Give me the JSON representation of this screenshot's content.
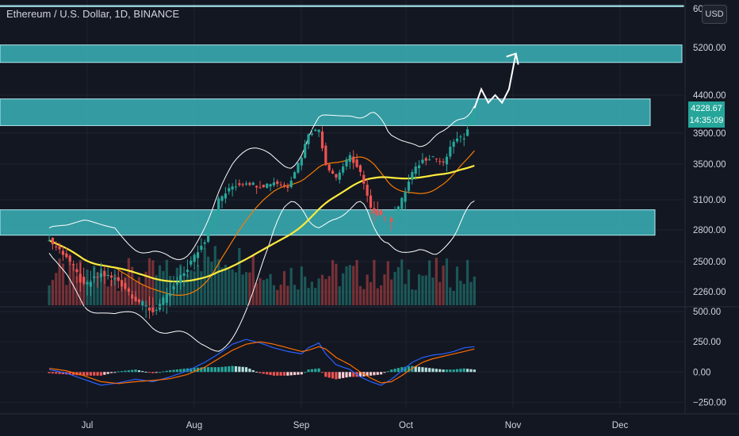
{
  "header": {
    "title": "Ethereum / U.S. Dollar, 1D, BINANCE",
    "currency": "USD"
  },
  "price_badge": {
    "price": "4228.67",
    "countdown": "14:35:09"
  },
  "colors": {
    "zone": "#3bb3b8",
    "up": "#26a69a",
    "down": "#ef5350",
    "ma_fast": "#f57c00",
    "ma_slow": "#ffeb3b",
    "band": "#ffffff",
    "macd": "#2962ff",
    "signal": "#ff6d00"
  },
  "chart_data": [
    {
      "type": "candlestick",
      "title": "Ethereum / U.S. Dollar, 1D, BINANCE",
      "xlabel": "",
      "ylabel": "",
      "x_ticks": [
        "Jul",
        "Aug",
        "Sep",
        "Oct",
        "Nov",
        "Dec"
      ],
      "y_ticks": [
        2260,
        2500,
        2800,
        3100,
        3500,
        3900,
        4400,
        5200,
        6000
      ],
      "y_tick_labels": [
        "2260.00",
        "2500.00",
        "2800.00",
        "3100.00",
        "3500.00",
        "3900.00",
        "4400.00",
        "5200.00",
        "6000.00"
      ],
      "ylim": [
        2150,
        6000
      ],
      "last_price": 4228.67,
      "zones": [
        {
          "low": 2750,
          "high": 3000
        },
        {
          "low": 4000,
          "high": 4350
        },
        {
          "low": 4950,
          "high": 5250
        },
        {
          "low": 5980,
          "high": 6100
        }
      ],
      "series": [
        {
          "kind": "close",
          "dates": [
            "2021-06-20",
            "2021-06-25",
            "2021-06-30",
            "2021-07-05",
            "2021-07-10",
            "2021-07-15",
            "2021-07-20",
            "2021-07-25",
            "2021-07-30",
            "2021-08-04",
            "2021-08-08",
            "2021-08-12",
            "2021-08-16",
            "2021-08-20",
            "2021-08-24",
            "2021-08-28",
            "2021-09-01",
            "2021-09-03",
            "2021-09-06",
            "2021-09-08",
            "2021-09-11",
            "2021-09-15",
            "2021-09-18",
            "2021-09-21",
            "2021-09-24",
            "2021-09-27",
            "2021-09-30",
            "2021-10-03",
            "2021-10-06",
            "2021-10-09",
            "2021-10-12",
            "2021-10-15",
            "2021-10-18",
            "2021-10-21"
          ],
          "values": [
            2700,
            2550,
            2300,
            2400,
            2350,
            2200,
            2100,
            2250,
            2450,
            2700,
            3100,
            3250,
            3300,
            3250,
            3300,
            3250,
            3600,
            3900,
            3950,
            3500,
            3350,
            3600,
            3400,
            3000,
            2950,
            2900,
            3100,
            3400,
            3550,
            3600,
            3500,
            3800,
            3850,
            4228
          ]
        },
        {
          "kind": "projection",
          "dates": [
            "2021-10-21",
            "2021-10-23",
            "2021-10-25",
            "2021-10-27",
            "2021-10-29",
            "2021-10-31",
            "2021-11-02",
            "2021-11-03"
          ],
          "values": [
            4228,
            4500,
            4300,
            4400,
            4300,
            4500,
            5100,
            5000
          ]
        }
      ]
    },
    {
      "type": "macd",
      "y_ticks": [
        -250,
        0,
        250,
        500
      ],
      "y_tick_labels": [
        "−250.00",
        "0.00",
        "250.00",
        "500.00"
      ],
      "ylim": [
        -300,
        520
      ],
      "series": [
        {
          "kind": "macd",
          "values": [
            20,
            -10,
            -60,
            -110,
            -90,
            -60,
            -80,
            -40,
            10,
            80,
            150,
            230,
            270,
            240,
            200,
            170,
            150,
            200,
            240,
            150,
            60,
            20,
            -40,
            -80,
            -110,
            -60,
            10,
            80,
            120,
            140,
            150,
            170,
            200,
            210
          ]
        },
        {
          "kind": "signal",
          "values": [
            30,
            10,
            -30,
            -80,
            -95,
            -80,
            -70,
            -55,
            -20,
            40,
            110,
            180,
            230,
            250,
            230,
            200,
            170,
            180,
            210,
            190,
            120,
            60,
            0,
            -50,
            -90,
            -80,
            -30,
            30,
            80,
            110,
            130,
            150,
            170,
            190
          ]
        }
      ]
    }
  ]
}
